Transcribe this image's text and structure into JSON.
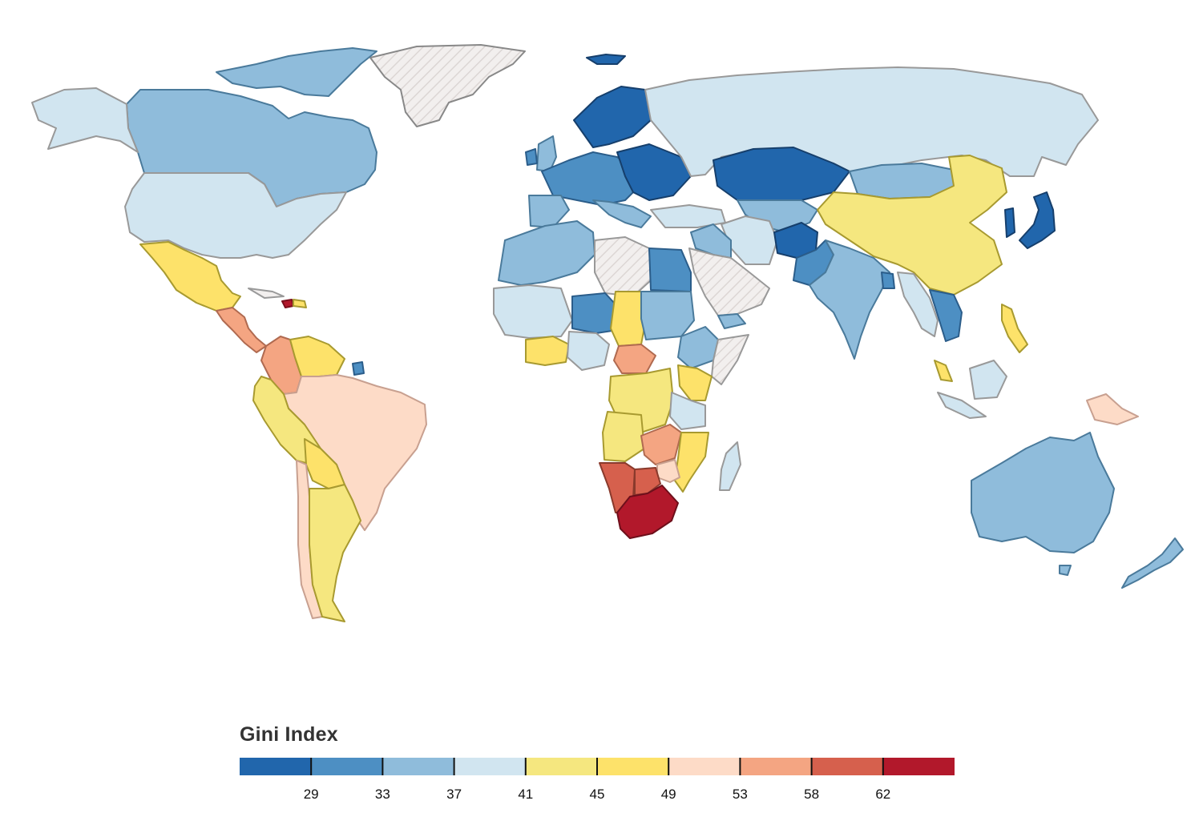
{
  "legend": {
    "title": "Gini Index",
    "ticks": [
      "29",
      "33",
      "37",
      "41",
      "45",
      "49",
      "53",
      "58",
      "62"
    ],
    "tick_values": [
      29,
      33,
      37,
      41,
      45,
      49,
      53,
      58,
      62
    ],
    "scale_min": 25,
    "scale_max": 66,
    "bins": [
      {
        "from": 25,
        "to": 29,
        "color": "#2166ac"
      },
      {
        "from": 29,
        "to": 33,
        "color": "#4d8fc3"
      },
      {
        "from": 33,
        "to": 37,
        "color": "#8fbcdb"
      },
      {
        "from": 37,
        "to": 41,
        "color": "#d1e5f0"
      },
      {
        "from": 41,
        "to": 45,
        "color": "#f5e77f"
      },
      {
        "from": 45,
        "to": 49,
        "color": "#fde26a"
      },
      {
        "from": 49,
        "to": 53,
        "color": "#fddbc7"
      },
      {
        "from": 53,
        "to": 58,
        "color": "#f4a582"
      },
      {
        "from": 58,
        "to": 62,
        "color": "#d6604d"
      },
      {
        "from": 62,
        "to": 66,
        "color": "#b2182b"
      }
    ],
    "no_data_pattern": "hatched-gray"
  },
  "colors": {
    "border_light": "#e6e6e6",
    "no_data_fill": "#f2efee",
    "no_data_stroke": "#888888"
  }
}
